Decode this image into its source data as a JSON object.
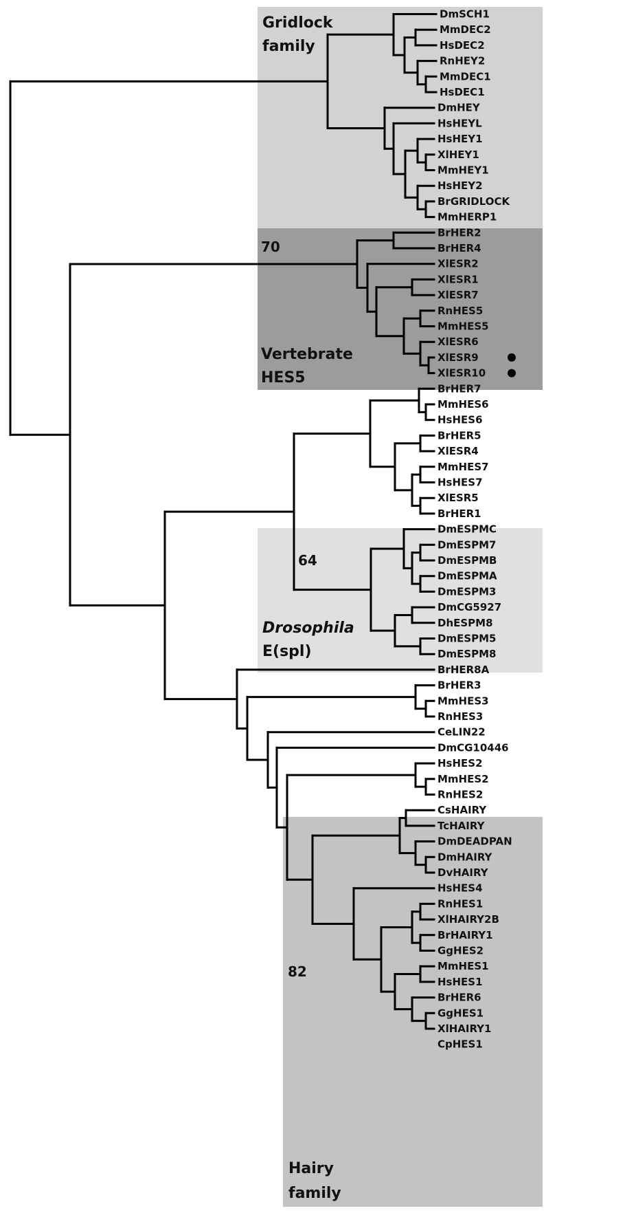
{
  "colors": {
    "gridlock": "#d2d2d2",
    "vertebrate_hes5": "#9c9c9c",
    "drosophila": "#e0e0e0",
    "hairy": "#c3c3c3",
    "branch": "#000000"
  },
  "groups": {
    "gridlock": {
      "line1": "Gridlock",
      "line2": "family"
    },
    "hes5": {
      "line1": "Vertebrate",
      "line2": "HES5"
    },
    "drosophila": {
      "line1": "Drosophila",
      "line2": "E(spl)"
    },
    "hairy": {
      "line1": "Hairy",
      "line2": "family"
    }
  },
  "bootstrap": {
    "hes5": "70",
    "espl": "64",
    "hairy": "82"
  },
  "leaves": [
    "DmSCH1",
    "MmDEC2",
    "HsDEC2",
    "RnHEY2",
    "MmDEC1",
    "HsDEC1",
    "DmHEY",
    "HsHEYL",
    "HsHEY1",
    "XlHEY1",
    "MmHEY1",
    "HsHEY2",
    "BrGRIDLOCK",
    "MmHERP1",
    "BrHER2",
    "BrHER4",
    "XlESR2",
    "XlESR1",
    "XlESR7",
    "RnHES5",
    "MmHES5",
    "XlESR6",
    "XlESR9",
    "XlESR10",
    "BrHER7",
    "MmHES6",
    "HsHES6",
    "BrHER5",
    "XlESR4",
    "MmHES7",
    "HsHES7",
    "XlESR5",
    "BrHER1",
    "DmESPMC",
    "DmESPM7",
    "DmESPMB",
    "DmESPMA",
    "DmESPM3",
    "DmCG5927",
    "DhESPM8",
    "DmESPM5",
    "DmESPM8",
    "BrHER8A",
    "BrHER3",
    "MmHES3",
    "RnHES3",
    "CeLIN22",
    "DmCG10446",
    "HsHES2",
    "MmHES2",
    "RnHES2",
    "CsHAIRY",
    "TcHAIRY",
    "DmDEADPAN",
    "DmHAIRY",
    "DvHAIRY",
    "HsHES4",
    "RnHES1",
    "XlHAIRY2B",
    "BrHAIRY1",
    "GgHES2",
    "MmHES1",
    "HsHES1",
    "BrHER6",
    "GgHES1",
    "XlHAIRY1",
    "CpHES1"
  ],
  "marked_leaves": [
    "XlESR9",
    "XlESR10"
  ]
}
